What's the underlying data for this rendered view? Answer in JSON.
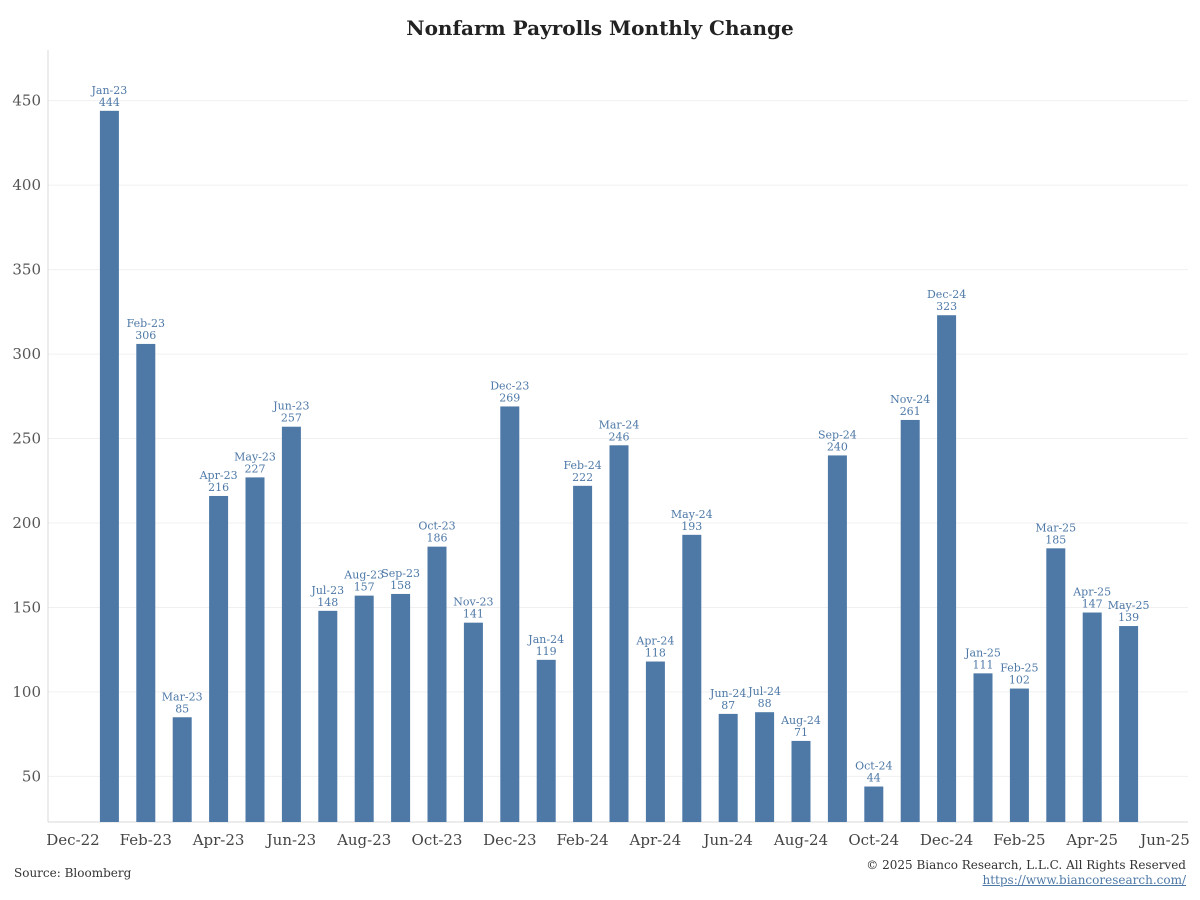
{
  "chart_data": {
    "type": "bar",
    "title": "Nonfarm Payrolls Monthly Change",
    "xlabel": "",
    "ylabel": "",
    "ylim": [
      23,
      480
    ],
    "yticks": [
      50,
      100,
      150,
      200,
      250,
      300,
      350,
      400,
      450
    ],
    "x_ticks": [
      "Dec-22",
      "Feb-23",
      "Apr-23",
      "Jun-23",
      "Aug-23",
      "Oct-23",
      "Dec-23",
      "Feb-24",
      "Apr-24",
      "Jun-24",
      "Aug-24",
      "Oct-24",
      "Dec-24",
      "Feb-25",
      "Apr-25",
      "Jun-25"
    ],
    "x_range": [
      "Dec-22",
      "Jun-25"
    ],
    "grid": true,
    "bar_color": "#4e79a7",
    "categories": [
      "Jan-23",
      "Feb-23",
      "Mar-23",
      "Apr-23",
      "May-23",
      "Jun-23",
      "Jul-23",
      "Aug-23",
      "Sep-23",
      "Oct-23",
      "Nov-23",
      "Dec-23",
      "Jan-24",
      "Feb-24",
      "Mar-24",
      "Apr-24",
      "May-24",
      "Jun-24",
      "Jul-24",
      "Aug-24",
      "Sep-24",
      "Oct-24",
      "Nov-24",
      "Dec-24",
      "Jan-25",
      "Feb-25",
      "Mar-25",
      "Apr-25",
      "May-25"
    ],
    "values": [
      444,
      306,
      85,
      216,
      227,
      257,
      148,
      157,
      158,
      186,
      141,
      269,
      119,
      222,
      246,
      118,
      193,
      87,
      88,
      71,
      240,
      44,
      261,
      323,
      111,
      102,
      185,
      147,
      139
    ]
  },
  "footer": {
    "source": "Source: Bloomberg",
    "copyright": "© 2025 Bianco Research, L.L.C. All Rights Reserved",
    "url": "https://www.biancoresearch.com/"
  }
}
